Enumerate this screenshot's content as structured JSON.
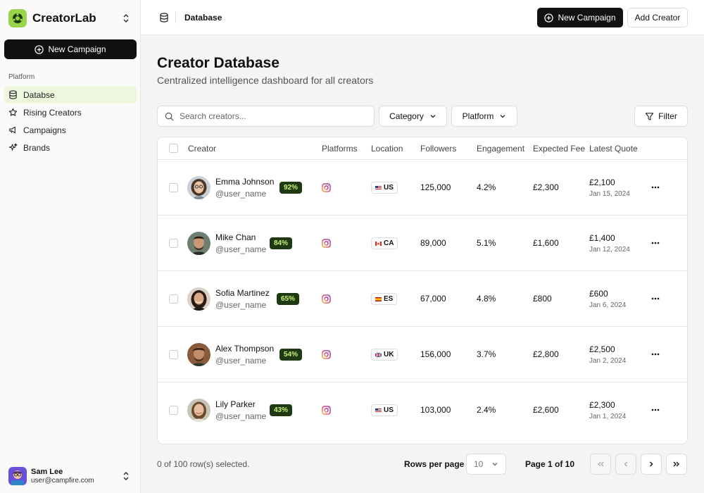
{
  "sidebar": {
    "brand": "CreatorLab",
    "cta": "New Campaign",
    "section": "Platform",
    "items": [
      {
        "label": "Databse",
        "icon": "database-icon"
      },
      {
        "label": "Rising Creators",
        "icon": "star-icon"
      },
      {
        "label": "Campaigns",
        "icon": "megaphone-icon"
      },
      {
        "label": "Brands",
        "icon": "sparkles-icon"
      }
    ],
    "user": {
      "name": "Sam Lee",
      "email": "user@campfire.com"
    }
  },
  "topbar": {
    "breadcrumb": "Database",
    "new_campaign": "New Campaign",
    "add_creator": "Add Creator"
  },
  "page": {
    "title": "Creator Database",
    "subtitle": "Centralized intelligence dashboard for all creators"
  },
  "toolbar": {
    "search_placeholder": "Search creators...",
    "category": "Category",
    "platform": "Platform",
    "filter": "Filter"
  },
  "table": {
    "headers": {
      "creator": "Creator",
      "platforms": "Platforms",
      "location": "Location",
      "followers": "Followers",
      "engagement": "Engagement",
      "fee": "Expected Fee",
      "quote": "Latest Quote"
    },
    "rows": [
      {
        "name": "Emma Johnson",
        "handle": "@user_name",
        "score": "92%",
        "country": "US",
        "followers": "125,000",
        "engagement": "4.2%",
        "fee": "£2,300",
        "quote": "£2,100",
        "date": "Jan 15, 2024"
      },
      {
        "name": "Mike Chan",
        "handle": "@user_name",
        "score": "84%",
        "country": "CA",
        "followers": "89,000",
        "engagement": "5.1%",
        "fee": "£1,600",
        "quote": "£1,400",
        "date": "Jan 12, 2024"
      },
      {
        "name": "Sofia Martinez",
        "handle": "@user_name",
        "score": "65%",
        "country": "ES",
        "followers": "67,000",
        "engagement": "4.8%",
        "fee": "£800",
        "quote": "£600",
        "date": "Jan 6, 2024"
      },
      {
        "name": "Alex Thompson",
        "handle": "@user_name",
        "score": "54%",
        "country": "UK",
        "followers": "156,000",
        "engagement": "3.7%",
        "fee": "£2,800",
        "quote": "£2,500",
        "date": "Jan 2, 2024"
      },
      {
        "name": "Lily Parker",
        "handle": "@user_name",
        "score": "43%",
        "country": "US",
        "followers": "103,000",
        "engagement": "2.4%",
        "fee": "£2,600",
        "quote": "£2,300",
        "date": "Jan 1, 2024"
      }
    ]
  },
  "footer": {
    "selection": "0 of 100 row(s) selected.",
    "rows_per_page_label": "Rows per page",
    "rows_per_page": "10",
    "page_info": "Page 1 of 10"
  },
  "colors": {
    "accent": "#9bd34a",
    "score_bg": "#1f3a12",
    "score_text": "#c8f27a",
    "active_nav": "#eef7dd"
  }
}
